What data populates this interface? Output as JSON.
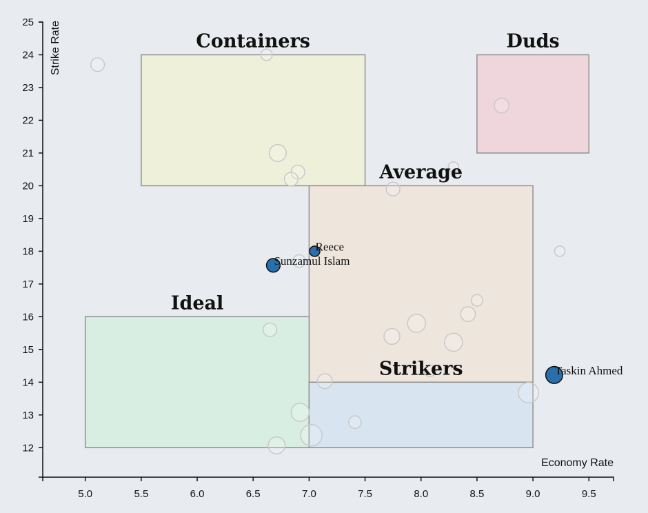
{
  "chart_data": {
    "type": "scatter",
    "title": "",
    "xlabel": "Economy Rate",
    "ylabel": "Strike Rate",
    "xlim": [
      4.62,
      9.72
    ],
    "ylim": [
      11.1,
      25.0
    ],
    "xticks": [
      "5.0",
      "5.5",
      "6.0",
      "6.5",
      "7.0",
      "7.5",
      "8.0",
      "8.5",
      "9.0",
      "9.5"
    ],
    "yticks": [
      "12",
      "13",
      "14",
      "15",
      "16",
      "17",
      "18",
      "19",
      "20",
      "21",
      "22",
      "23",
      "24",
      "25"
    ],
    "zones": [
      {
        "name": "Containers",
        "x0": 5.5,
        "x1": 7.5,
        "y0": 20,
        "y1": 24,
        "color": "#eff0d9"
      },
      {
        "name": "Duds",
        "x0": 8.5,
        "x1": 9.5,
        "y0": 21,
        "y1": 24,
        "color": "#efd6dc"
      },
      {
        "name": "Average",
        "x0": 7.0,
        "x1": 9.0,
        "y0": 14,
        "y1": 20,
        "color": "#eee5dc"
      },
      {
        "name": "Ideal",
        "x0": 5.0,
        "x1": 7.0,
        "y0": 12,
        "y1": 16,
        "color": "#d9eee2"
      },
      {
        "name": "Strikers",
        "x0": 7.0,
        "x1": 9.0,
        "y0": 12,
        "y1": 14,
        "color": "#d8e5f1"
      }
    ],
    "highlighted": [
      {
        "name": "Reece",
        "x": 7.05,
        "y": 18.0,
        "size": 0.5
      },
      {
        "name": "Sunzamul Islam",
        "x": 6.68,
        "y": 17.57,
        "size": 0.8
      },
      {
        "name": "Taskin Ahmed",
        "x": 9.19,
        "y": 14.22,
        "size": 1.1
      }
    ],
    "background_points": [
      {
        "x": 5.11,
        "y": 23.7,
        "size": 0.8
      },
      {
        "x": 6.62,
        "y": 24.0,
        "size": 0.6
      },
      {
        "x": 6.72,
        "y": 21.0,
        "size": 1.1
      },
      {
        "x": 6.9,
        "y": 20.42,
        "size": 0.8
      },
      {
        "x": 6.84,
        "y": 20.2,
        "size": 0.8
      },
      {
        "x": 8.72,
        "y": 22.45,
        "size": 0.9
      },
      {
        "x": 8.29,
        "y": 20.57,
        "size": 0.5
      },
      {
        "x": 7.75,
        "y": 19.9,
        "size": 0.8
      },
      {
        "x": 9.24,
        "y": 18.0,
        "size": 0.5
      },
      {
        "x": 6.91,
        "y": 17.7,
        "size": 0.7
      },
      {
        "x": 8.5,
        "y": 16.5,
        "size": 0.6
      },
      {
        "x": 8.42,
        "y": 16.08,
        "size": 0.9
      },
      {
        "x": 7.96,
        "y": 15.8,
        "size": 1.2
      },
      {
        "x": 6.65,
        "y": 15.6,
        "size": 0.8
      },
      {
        "x": 7.74,
        "y": 15.4,
        "size": 1.0
      },
      {
        "x": 8.29,
        "y": 15.22,
        "size": 1.2
      },
      {
        "x": 8.08,
        "y": 14.35,
        "size": 0.6
      },
      {
        "x": 7.14,
        "y": 14.03,
        "size": 0.9
      },
      {
        "x": 8.96,
        "y": 13.68,
        "size": 1.4
      },
      {
        "x": 6.92,
        "y": 13.08,
        "size": 1.2
      },
      {
        "x": 7.41,
        "y": 12.78,
        "size": 0.7
      },
      {
        "x": 7.02,
        "y": 12.38,
        "size": 1.5
      },
      {
        "x": 6.71,
        "y": 12.07,
        "size": 1.1
      }
    ],
    "grid": false,
    "legend": "none"
  },
  "colors": {
    "background": "#e8ebef",
    "highlight_fill": "#2a6fad",
    "zone_stroke": "#8f8f8f",
    "ghost_stroke": "#c9c9c9"
  }
}
